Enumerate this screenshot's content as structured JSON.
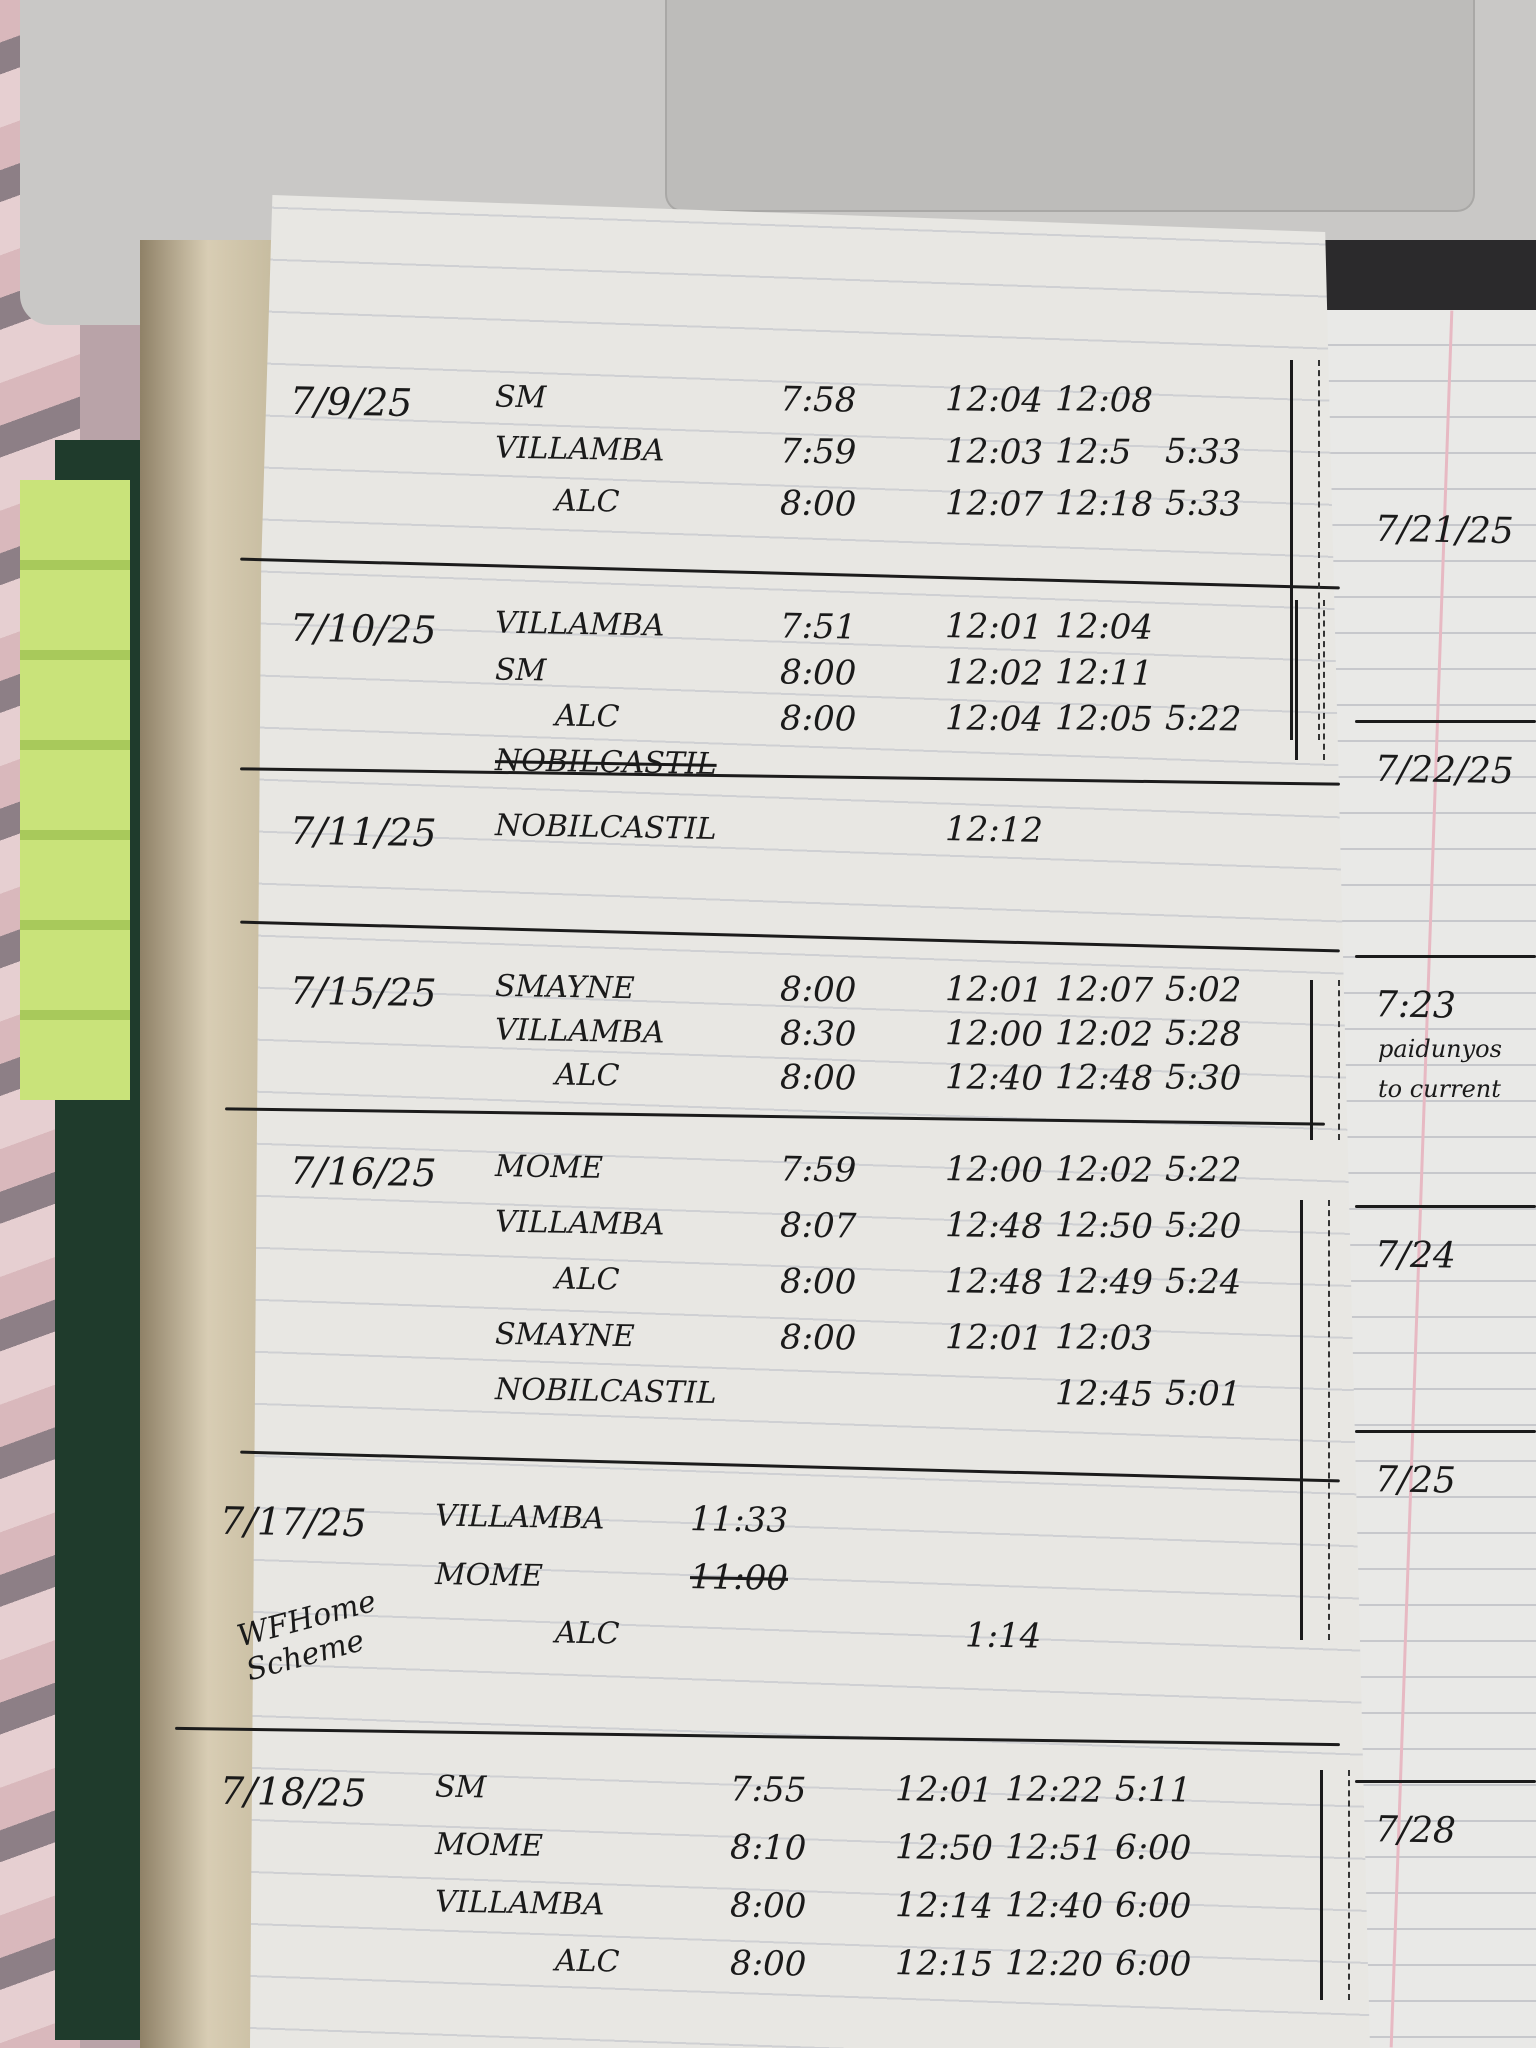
{
  "left_page": {
    "entries": [
      {
        "date": "7/9/25",
        "rows": [
          {
            "name": "SM",
            "times": [
              "7:58",
              "12:04",
              "12:08",
              ""
            ]
          },
          {
            "name": "Villamba",
            "times": [
              "7:59",
              "12:03",
              "12:5",
              "5:33"
            ]
          },
          {
            "name": "ALC",
            "times": [
              "8:00",
              "12:07",
              "12:18",
              "5:33"
            ]
          }
        ]
      },
      {
        "date": "7/10/25",
        "rows": [
          {
            "name": "Villamba",
            "times": [
              "7:51",
              "12:01",
              "12:04",
              ""
            ]
          },
          {
            "name": "SM",
            "times": [
              "8:00",
              "12:02",
              "12:11",
              ""
            ]
          },
          {
            "name": "ALC",
            "times": [
              "8:00",
              "12:04",
              "12:05",
              "5:22"
            ]
          },
          {
            "name": "Nobilcastil",
            "times": [
              "",
              "",
              "",
              ""
            ],
            "struck": true
          }
        ]
      },
      {
        "date": "7/11/25",
        "rows": [
          {
            "name": "Nobilcastil",
            "times": [
              "",
              "12:12",
              "",
              ""
            ]
          }
        ]
      },
      {
        "date": "7/15/25",
        "rows": [
          {
            "name": "SMayne",
            "times": [
              "8:00",
              "12:01",
              "12:07",
              "5:02"
            ]
          },
          {
            "name": "Villamba",
            "times": [
              "8:30",
              "12:00",
              "12:02",
              "5:28"
            ]
          },
          {
            "name": "ALC",
            "times": [
              "8:00",
              "12:40",
              "12:48",
              "5:30"
            ]
          }
        ]
      },
      {
        "date": "7/16/25",
        "rows": [
          {
            "name": "Mome",
            "times": [
              "7:59",
              "12:00",
              "12:02",
              "5:22"
            ]
          },
          {
            "name": "Villamba",
            "times": [
              "8:07",
              "12:48",
              "12:50",
              "5:20"
            ]
          },
          {
            "name": "ALC",
            "times": [
              "8:00",
              "12:48",
              "12:49",
              "5:24"
            ]
          },
          {
            "name": "SMayne",
            "times": [
              "8:00",
              "12:01",
              "12:03",
              ""
            ]
          },
          {
            "name": "Nobilcastil",
            "times": [
              "",
              "",
              "12:45",
              "5:01"
            ]
          }
        ]
      },
      {
        "date": "7/17/25",
        "note": "WFHome Scheme",
        "rows": [
          {
            "name": "Villamba",
            "times": [
              "11:33",
              "",
              "",
              ""
            ]
          },
          {
            "name": "Mome",
            "times": [
              "11:00",
              "",
              "",
              ""
            ],
            "struck_time": true
          },
          {
            "name": "ALC",
            "times": [
              "",
              "",
              "1:14",
              ""
            ]
          }
        ]
      },
      {
        "date": "7/18/25",
        "rows": [
          {
            "name": "SM",
            "times": [
              "7:55",
              "12:01",
              "12:22",
              "5:11"
            ]
          },
          {
            "name": "Mome",
            "times": [
              "8:10",
              "12:50",
              "12:51",
              "6:00"
            ]
          },
          {
            "name": "Villamba",
            "times": [
              "8:00",
              "12:14",
              "12:40",
              "6:00"
            ]
          },
          {
            "name": "ALC",
            "times": [
              "8:00",
              "12:15",
              "12:20",
              "6:00"
            ]
          }
        ]
      }
    ]
  },
  "right_page": {
    "entries": [
      {
        "date": "7/21/25"
      },
      {
        "date": "7/22/25"
      },
      {
        "date": "7:23",
        "notes": [
          "paidunyos",
          "to current"
        ]
      },
      {
        "date": "7/24"
      },
      {
        "date": "7/25"
      },
      {
        "date": "7/28"
      }
    ]
  },
  "colors": {
    "ink": "#1a1a1a",
    "paper": "#e8e7e3",
    "tabs": "#c9e37a",
    "margin_line": "#e7b9c3"
  }
}
